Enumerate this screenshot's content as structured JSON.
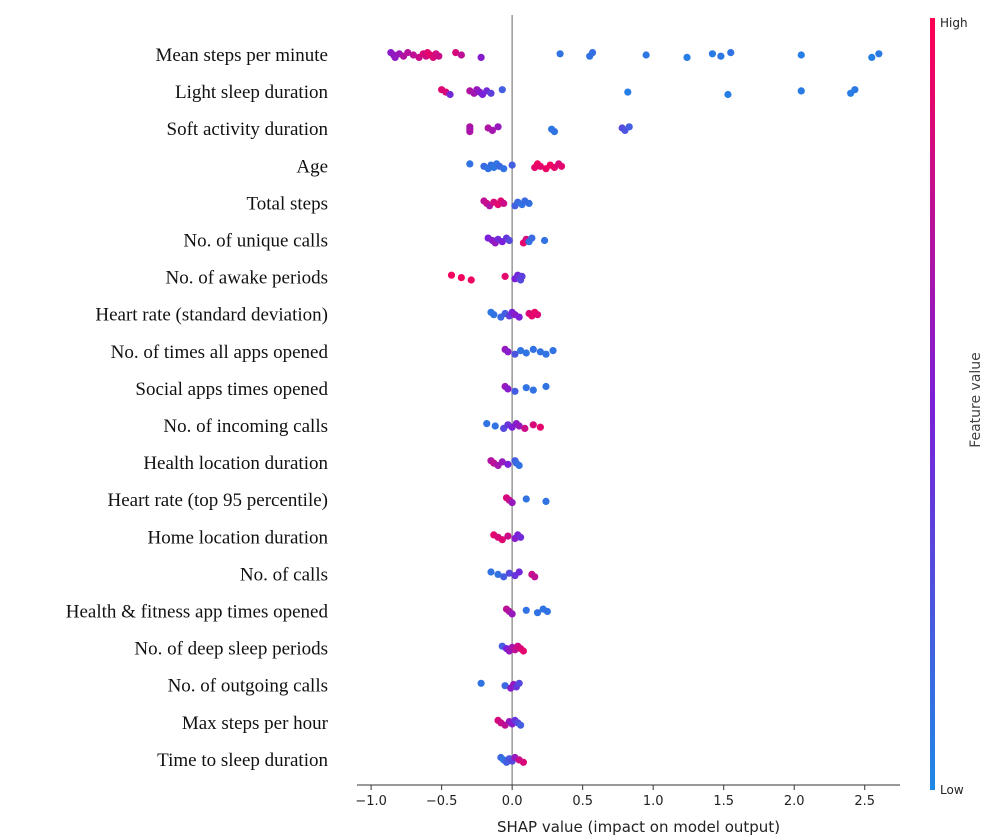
{
  "chart_data": {
    "type": "scatter",
    "subtype": "shap-beeswarm",
    "title": "",
    "xlabel": "SHAP value (impact on model output)",
    "ylabel": "",
    "xlim": [
      -1.1,
      2.75
    ],
    "x_ticks": [
      -1.0,
      -0.5,
      0.0,
      0.5,
      1.0,
      1.5,
      2.0,
      2.5
    ],
    "x_tick_labels": [
      "−1.0",
      "−0.5",
      "0.0",
      "0.5",
      "1.0",
      "1.5",
      "2.0",
      "2.5"
    ],
    "grid": false,
    "colorbar": {
      "label": "Feature value",
      "high_label": "High",
      "low_label": "Low",
      "high_color": "#ff0052",
      "low_color": "#1e88e5"
    },
    "features": [
      {
        "name": "Mean steps per minute",
        "points": [
          {
            "x": -0.86,
            "v": 0.55
          },
          {
            "x": -0.84,
            "v": 0.6
          },
          {
            "x": -0.83,
            "v": 0.58
          },
          {
            "x": -0.8,
            "v": 0.62
          },
          {
            "x": -0.77,
            "v": 0.7
          },
          {
            "x": -0.74,
            "v": 0.72
          },
          {
            "x": -0.7,
            "v": 0.75
          },
          {
            "x": -0.66,
            "v": 0.8
          },
          {
            "x": -0.63,
            "v": 0.85
          },
          {
            "x": -0.61,
            "v": 0.82
          },
          {
            "x": -0.6,
            "v": 0.88
          },
          {
            "x": -0.58,
            "v": 0.9
          },
          {
            "x": -0.56,
            "v": 0.86
          },
          {
            "x": -0.54,
            "v": 0.83
          },
          {
            "x": -0.52,
            "v": 0.8
          },
          {
            "x": -0.4,
            "v": 0.85
          },
          {
            "x": -0.36,
            "v": 0.75
          },
          {
            "x": -0.22,
            "v": 0.55
          },
          {
            "x": 0.34,
            "v": 0.1
          },
          {
            "x": 0.55,
            "v": 0.1
          },
          {
            "x": 0.57,
            "v": 0.12
          },
          {
            "x": 0.95,
            "v": 0.08
          },
          {
            "x": 1.24,
            "v": 0.05
          },
          {
            "x": 1.42,
            "v": 0.06
          },
          {
            "x": 1.48,
            "v": 0.08
          },
          {
            "x": 1.55,
            "v": 0.1
          },
          {
            "x": 2.05,
            "v": 0.05
          },
          {
            "x": 2.55,
            "v": 0.04
          },
          {
            "x": 2.6,
            "v": 0.06
          }
        ]
      },
      {
        "name": "Light sleep duration",
        "points": [
          {
            "x": -0.5,
            "v": 0.88
          },
          {
            "x": -0.47,
            "v": 0.85
          },
          {
            "x": -0.44,
            "v": 0.45
          },
          {
            "x": -0.3,
            "v": 0.7
          },
          {
            "x": -0.27,
            "v": 0.65
          },
          {
            "x": -0.25,
            "v": 0.6
          },
          {
            "x": -0.23,
            "v": 0.55
          },
          {
            "x": -0.21,
            "v": 0.5
          },
          {
            "x": -0.18,
            "v": 0.45
          },
          {
            "x": -0.15,
            "v": 0.35
          },
          {
            "x": -0.07,
            "v": 0.2
          },
          {
            "x": 0.82,
            "v": 0.05
          },
          {
            "x": 1.53,
            "v": 0.05
          },
          {
            "x": 2.05,
            "v": 0.06
          },
          {
            "x": 2.4,
            "v": 0.05
          },
          {
            "x": 2.43,
            "v": 0.07
          }
        ]
      },
      {
        "name": "Soft activity duration",
        "points": [
          {
            "x": -0.3,
            "v": 0.7
          },
          {
            "x": -0.3,
            "v": 0.65
          },
          {
            "x": -0.3,
            "v": 0.68
          },
          {
            "x": -0.17,
            "v": 0.7
          },
          {
            "x": -0.14,
            "v": 0.65
          },
          {
            "x": -0.1,
            "v": 0.6
          },
          {
            "x": 0.28,
            "v": 0.08
          },
          {
            "x": 0.3,
            "v": 0.1
          },
          {
            "x": 0.78,
            "v": 0.3
          },
          {
            "x": 0.8,
            "v": 0.25
          },
          {
            "x": 0.83,
            "v": 0.2
          }
        ]
      },
      {
        "name": "Age",
        "points": [
          {
            "x": -0.3,
            "v": 0.1
          },
          {
            "x": -0.2,
            "v": 0.15
          },
          {
            "x": -0.17,
            "v": 0.1
          },
          {
            "x": -0.15,
            "v": 0.12
          },
          {
            "x": -0.13,
            "v": 0.08
          },
          {
            "x": -0.11,
            "v": 0.1
          },
          {
            "x": -0.09,
            "v": 0.15
          },
          {
            "x": -0.06,
            "v": 0.1
          },
          {
            "x": 0.0,
            "v": 0.2
          },
          {
            "x": 0.16,
            "v": 0.9
          },
          {
            "x": 0.18,
            "v": 0.95
          },
          {
            "x": 0.2,
            "v": 0.9
          },
          {
            "x": 0.24,
            "v": 0.92
          },
          {
            "x": 0.27,
            "v": 0.95
          },
          {
            "x": 0.3,
            "v": 0.9
          },
          {
            "x": 0.33,
            "v": 0.85
          },
          {
            "x": 0.35,
            "v": 0.9
          }
        ]
      },
      {
        "name": "Total steps",
        "points": [
          {
            "x": -0.2,
            "v": 0.75
          },
          {
            "x": -0.18,
            "v": 0.8
          },
          {
            "x": -0.16,
            "v": 0.7
          },
          {
            "x": -0.13,
            "v": 0.85
          },
          {
            "x": -0.1,
            "v": 0.9
          },
          {
            "x": -0.08,
            "v": 0.88
          },
          {
            "x": -0.06,
            "v": 0.8
          },
          {
            "x": 0.02,
            "v": 0.2
          },
          {
            "x": 0.04,
            "v": 0.15
          },
          {
            "x": 0.07,
            "v": 0.1
          },
          {
            "x": 0.09,
            "v": 0.15
          },
          {
            "x": 0.12,
            "v": 0.12
          }
        ]
      },
      {
        "name": "No. of unique calls",
        "points": [
          {
            "x": -0.17,
            "v": 0.5
          },
          {
            "x": -0.14,
            "v": 0.55
          },
          {
            "x": -0.12,
            "v": 0.6
          },
          {
            "x": -0.1,
            "v": 0.45
          },
          {
            "x": -0.07,
            "v": 0.5
          },
          {
            "x": -0.04,
            "v": 0.4
          },
          {
            "x": -0.02,
            "v": 0.3
          },
          {
            "x": 0.08,
            "v": 0.9
          },
          {
            "x": 0.1,
            "v": 0.85
          },
          {
            "x": 0.12,
            "v": 0.1
          },
          {
            "x": 0.14,
            "v": 0.15
          },
          {
            "x": 0.23,
            "v": 0.1
          }
        ]
      },
      {
        "name": "No. of awake periods",
        "points": [
          {
            "x": -0.43,
            "v": 0.95
          },
          {
            "x": -0.36,
            "v": 0.95
          },
          {
            "x": -0.29,
            "v": 0.95
          },
          {
            "x": -0.05,
            "v": 0.9
          },
          {
            "x": 0.02,
            "v": 0.5
          },
          {
            "x": 0.04,
            "v": 0.45
          },
          {
            "x": 0.05,
            "v": 0.4
          },
          {
            "x": 0.06,
            "v": 0.3
          },
          {
            "x": 0.07,
            "v": 0.35
          }
        ]
      },
      {
        "name": "Heart rate (standard deviation)",
        "points": [
          {
            "x": -0.15,
            "v": 0.08
          },
          {
            "x": -0.13,
            "v": 0.1
          },
          {
            "x": -0.08,
            "v": 0.15
          },
          {
            "x": -0.05,
            "v": 0.2
          },
          {
            "x": -0.02,
            "v": 0.35
          },
          {
            "x": 0.0,
            "v": 0.5
          },
          {
            "x": 0.02,
            "v": 0.55
          },
          {
            "x": 0.05,
            "v": 0.5
          },
          {
            "x": 0.12,
            "v": 0.85
          },
          {
            "x": 0.14,
            "v": 0.9
          },
          {
            "x": 0.16,
            "v": 0.92
          },
          {
            "x": 0.18,
            "v": 0.88
          }
        ]
      },
      {
        "name": "No. of times all apps opened",
        "points": [
          {
            "x": -0.05,
            "v": 0.6
          },
          {
            "x": -0.03,
            "v": 0.55
          },
          {
            "x": 0.02,
            "v": 0.25
          },
          {
            "x": 0.06,
            "v": 0.1
          },
          {
            "x": 0.1,
            "v": 0.1
          },
          {
            "x": 0.15,
            "v": 0.1
          },
          {
            "x": 0.2,
            "v": 0.1
          },
          {
            "x": 0.24,
            "v": 0.1
          },
          {
            "x": 0.29,
            "v": 0.1
          }
        ]
      },
      {
        "name": "Social apps times opened",
        "points": [
          {
            "x": -0.05,
            "v": 0.6
          },
          {
            "x": -0.03,
            "v": 0.55
          },
          {
            "x": 0.02,
            "v": 0.2
          },
          {
            "x": 0.1,
            "v": 0.1
          },
          {
            "x": 0.15,
            "v": 0.1
          },
          {
            "x": 0.24,
            "v": 0.1
          }
        ]
      },
      {
        "name": "No. of incoming calls",
        "points": [
          {
            "x": -0.18,
            "v": 0.1
          },
          {
            "x": -0.12,
            "v": 0.1
          },
          {
            "x": -0.06,
            "v": 0.3
          },
          {
            "x": -0.03,
            "v": 0.4
          },
          {
            "x": 0.0,
            "v": 0.5
          },
          {
            "x": 0.03,
            "v": 0.55
          },
          {
            "x": 0.05,
            "v": 0.6
          },
          {
            "x": 0.09,
            "v": 0.8
          },
          {
            "x": 0.15,
            "v": 0.85
          },
          {
            "x": 0.2,
            "v": 0.9
          }
        ]
      },
      {
        "name": "Health location duration",
        "points": [
          {
            "x": -0.15,
            "v": 0.7
          },
          {
            "x": -0.13,
            "v": 0.75
          },
          {
            "x": -0.1,
            "v": 0.65
          },
          {
            "x": -0.07,
            "v": 0.6
          },
          {
            "x": -0.03,
            "v": 0.5
          },
          {
            "x": 0.02,
            "v": 0.2
          },
          {
            "x": 0.03,
            "v": 0.15
          },
          {
            "x": 0.05,
            "v": 0.1
          }
        ]
      },
      {
        "name": "Heart rate (top 95 percentile)",
        "points": [
          {
            "x": -0.04,
            "v": 0.85
          },
          {
            "x": -0.02,
            "v": 0.8
          },
          {
            "x": 0.0,
            "v": 0.6
          },
          {
            "x": 0.1,
            "v": 0.1
          },
          {
            "x": 0.24,
            "v": 0.1
          }
        ]
      },
      {
        "name": "Home location duration",
        "points": [
          {
            "x": -0.13,
            "v": 0.9
          },
          {
            "x": -0.1,
            "v": 0.85
          },
          {
            "x": -0.07,
            "v": 0.88
          },
          {
            "x": -0.03,
            "v": 0.8
          },
          {
            "x": 0.02,
            "v": 0.55
          },
          {
            "x": 0.04,
            "v": 0.5
          },
          {
            "x": 0.06,
            "v": 0.45
          }
        ]
      },
      {
        "name": "No. of calls",
        "points": [
          {
            "x": -0.15,
            "v": 0.1
          },
          {
            "x": -0.1,
            "v": 0.1
          },
          {
            "x": -0.06,
            "v": 0.2
          },
          {
            "x": -0.02,
            "v": 0.3
          },
          {
            "x": 0.02,
            "v": 0.4
          },
          {
            "x": 0.05,
            "v": 0.45
          },
          {
            "x": 0.14,
            "v": 0.8
          },
          {
            "x": 0.16,
            "v": 0.75
          }
        ]
      },
      {
        "name": "Health & fitness app times opened",
        "points": [
          {
            "x": -0.04,
            "v": 0.75
          },
          {
            "x": -0.02,
            "v": 0.7
          },
          {
            "x": 0.0,
            "v": 0.6
          },
          {
            "x": 0.1,
            "v": 0.1
          },
          {
            "x": 0.18,
            "v": 0.1
          },
          {
            "x": 0.22,
            "v": 0.1
          },
          {
            "x": 0.25,
            "v": 0.1
          }
        ]
      },
      {
        "name": "No. of deep sleep periods",
        "points": [
          {
            "x": -0.07,
            "v": 0.2
          },
          {
            "x": -0.04,
            "v": 0.5
          },
          {
            "x": -0.02,
            "v": 0.6
          },
          {
            "x": 0.0,
            "v": 0.65
          },
          {
            "x": 0.02,
            "v": 0.75
          },
          {
            "x": 0.04,
            "v": 0.8
          },
          {
            "x": 0.06,
            "v": 0.85
          },
          {
            "x": 0.08,
            "v": 0.9
          }
        ]
      },
      {
        "name": "No. of outgoing calls",
        "points": [
          {
            "x": -0.22,
            "v": 0.1
          },
          {
            "x": -0.05,
            "v": 0.15
          },
          {
            "x": -0.01,
            "v": 0.55
          },
          {
            "x": 0.01,
            "v": 0.6
          },
          {
            "x": 0.03,
            "v": 0.4
          },
          {
            "x": 0.05,
            "v": 0.3
          }
        ]
      },
      {
        "name": "Max steps per hour",
        "points": [
          {
            "x": -0.1,
            "v": 0.85
          },
          {
            "x": -0.08,
            "v": 0.8
          },
          {
            "x": -0.05,
            "v": 0.75
          },
          {
            "x": -0.02,
            "v": 0.6
          },
          {
            "x": 0.0,
            "v": 0.55
          },
          {
            "x": 0.02,
            "v": 0.4
          },
          {
            "x": 0.04,
            "v": 0.3
          },
          {
            "x": 0.06,
            "v": 0.2
          }
        ]
      },
      {
        "name": "Time to sleep duration",
        "points": [
          {
            "x": -0.08,
            "v": 0.15
          },
          {
            "x": -0.06,
            "v": 0.1
          },
          {
            "x": -0.04,
            "v": 0.2
          },
          {
            "x": -0.02,
            "v": 0.25
          },
          {
            "x": 0.0,
            "v": 0.3
          },
          {
            "x": 0.02,
            "v": 0.6
          },
          {
            "x": 0.05,
            "v": 0.8
          },
          {
            "x": 0.08,
            "v": 0.85
          }
        ]
      }
    ]
  }
}
